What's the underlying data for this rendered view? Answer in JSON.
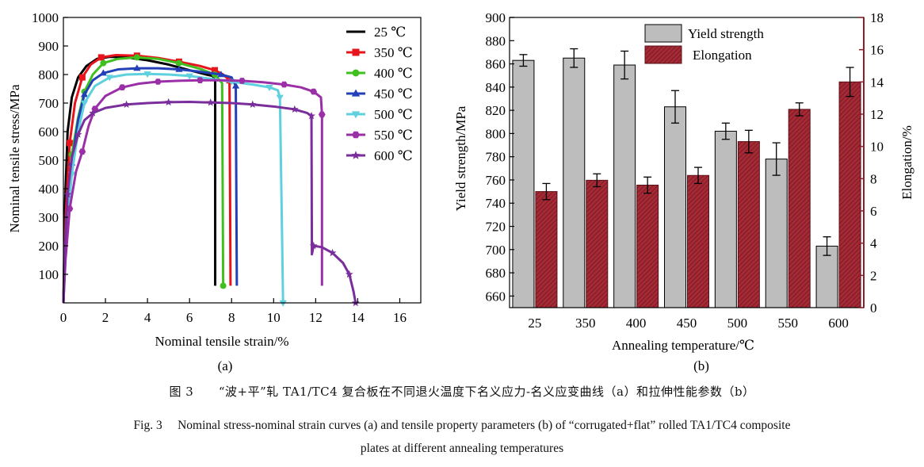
{
  "chart_data": [
    {
      "type": "line",
      "panel_label": "(a)",
      "xlabel": "Nominal tensile strain/%",
      "ylabel": "Nominal tensile stress/MPa",
      "xlim": [
        0,
        17
      ],
      "ylim": [
        0,
        1000
      ],
      "xticks": [
        "0",
        "2",
        "4",
        "6",
        "8",
        "10",
        "12",
        "14",
        "16"
      ],
      "yticks": [
        "100",
        "200",
        "300",
        "400",
        "500",
        "600",
        "700",
        "800",
        "900",
        "1000"
      ],
      "legend_position": "top-right",
      "series": [
        {
          "name": "25 ℃",
          "color": "#000000",
          "marker": "none",
          "points": [
            [
              0,
              0
            ],
            [
              0.08,
              350
            ],
            [
              0.2,
              600
            ],
            [
              0.4,
              720
            ],
            [
              0.7,
              790
            ],
            [
              1.1,
              830
            ],
            [
              1.6,
              855
            ],
            [
              2.2,
              862
            ],
            [
              3.0,
              860
            ],
            [
              4.0,
              850
            ],
            [
              5.0,
              835
            ],
            [
              6.0,
              815
            ],
            [
              6.8,
              800
            ],
            [
              7.1,
              795
            ],
            [
              7.22,
              780
            ],
            [
              7.22,
              60
            ]
          ]
        },
        {
          "name": "350 ℃",
          "color": "#e8141b",
          "marker": "square",
          "points": [
            [
              0,
              0
            ],
            [
              0.12,
              320
            ],
            [
              0.3,
              560
            ],
            [
              0.55,
              700
            ],
            [
              0.9,
              790
            ],
            [
              1.3,
              835
            ],
            [
              1.8,
              860
            ],
            [
              2.5,
              868
            ],
            [
              3.5,
              866
            ],
            [
              4.5,
              858
            ],
            [
              5.5,
              845
            ],
            [
              6.5,
              830
            ],
            [
              7.2,
              815
            ],
            [
              7.6,
              800
            ],
            [
              7.9,
              780
            ],
            [
              7.95,
              60
            ]
          ]
        },
        {
          "name": "400 ℃",
          "color": "#3fc01f",
          "marker": "circle",
          "points": [
            [
              0,
              0
            ],
            [
              0.15,
              300
            ],
            [
              0.4,
              520
            ],
            [
              0.7,
              650
            ],
            [
              1.0,
              740
            ],
            [
              1.4,
              800
            ],
            [
              1.9,
              840
            ],
            [
              2.6,
              855
            ],
            [
              3.5,
              860
            ],
            [
              4.5,
              855
            ],
            [
              5.5,
              840
            ],
            [
              6.5,
              820
            ],
            [
              7.2,
              800
            ],
            [
              7.55,
              770
            ],
            [
              7.6,
              60
            ]
          ]
        },
        {
          "name": "450 ℃",
          "color": "#2340b8",
          "marker": "triangle",
          "points": [
            [
              0,
              0
            ],
            [
              0.15,
              280
            ],
            [
              0.4,
              490
            ],
            [
              0.7,
              640
            ],
            [
              1.0,
              730
            ],
            [
              1.4,
              780
            ],
            [
              1.9,
              805
            ],
            [
              2.6,
              818
            ],
            [
              3.5,
              822
            ],
            [
              4.5,
              822
            ],
            [
              5.5,
              818
            ],
            [
              6.5,
              810
            ],
            [
              7.5,
              800
            ],
            [
              8.0,
              790
            ],
            [
              8.2,
              760
            ],
            [
              8.25,
              60
            ]
          ]
        },
        {
          "name": "500 ℃",
          "color": "#5fd0de",
          "marker": "triangle-down",
          "points": [
            [
              0,
              0
            ],
            [
              0.15,
              250
            ],
            [
              0.4,
              450
            ],
            [
              0.7,
              600
            ],
            [
              1.0,
              700
            ],
            [
              1.5,
              760
            ],
            [
              2.2,
              790
            ],
            [
              3.0,
              800
            ],
            [
              4.0,
              802
            ],
            [
              5.0,
              800
            ],
            [
              6.0,
              795
            ],
            [
              7.0,
              785
            ],
            [
              8.0,
              775
            ],
            [
              9.0,
              765
            ],
            [
              9.8,
              755
            ],
            [
              10.2,
              745
            ],
            [
              10.3,
              720
            ],
            [
              10.4,
              240
            ],
            [
              10.45,
              0
            ]
          ]
        },
        {
          "name": "550 ℃",
          "color": "#9b2fa8",
          "marker": "hexagon",
          "points": [
            [
              0,
              0
            ],
            [
              0.1,
              150
            ],
            [
              0.3,
              330
            ],
            [
              0.6,
              460
            ],
            [
              0.9,
              530
            ],
            [
              1.2,
              620
            ],
            [
              1.5,
              680
            ],
            [
              2.0,
              725
            ],
            [
              2.8,
              755
            ],
            [
              3.6,
              768
            ],
            [
              4.5,
              775
            ],
            [
              5.5,
              778
            ],
            [
              6.5,
              780
            ],
            [
              7.5,
              780
            ],
            [
              8.5,
              778
            ],
            [
              9.5,
              773
            ],
            [
              10.5,
              765
            ],
            [
              11.3,
              755
            ],
            [
              11.9,
              740
            ],
            [
              12.25,
              720
            ],
            [
              12.3,
              660
            ],
            [
              12.3,
              60
            ]
          ]
        },
        {
          "name": "600 ℃",
          "color": "#7a2e9c",
          "marker": "star",
          "points": [
            [
              0,
              0
            ],
            [
              0.08,
              200
            ],
            [
              0.2,
              380
            ],
            [
              0.4,
              510
            ],
            [
              0.7,
              590
            ],
            [
              1.0,
              640
            ],
            [
              1.4,
              665
            ],
            [
              2.0,
              683
            ],
            [
              3.0,
              695
            ],
            [
              4.0,
              700
            ],
            [
              5.0,
              703
            ],
            [
              6.0,
              704
            ],
            [
              7.0,
              702
            ],
            [
              8.0,
              700
            ],
            [
              9.0,
              695
            ],
            [
              10.0,
              688
            ],
            [
              11.0,
              678
            ],
            [
              11.6,
              665
            ],
            [
              11.8,
              655
            ],
            [
              11.82,
              170
            ],
            [
              11.9,
              200
            ],
            [
              12.3,
              195
            ],
            [
              12.8,
              175
            ],
            [
              13.3,
              140
            ],
            [
              13.6,
              100
            ],
            [
              13.8,
              40
            ],
            [
              13.9,
              0
            ]
          ]
        }
      ]
    },
    {
      "type": "bar",
      "panel_label": "(b)",
      "xlabel": "Annealing temperature/℃",
      "ylabel_left": "Yield strength/MPa",
      "ylabel_right": "Elongation/%",
      "categories": [
        "25",
        "350",
        "400",
        "450",
        "500",
        "550",
        "600"
      ],
      "ylim_left": [
        650,
        900
      ],
      "ylim_right": [
        0,
        18
      ],
      "yticks_left": [
        "660",
        "680",
        "700",
        "720",
        "740",
        "760",
        "780",
        "800",
        "820",
        "840",
        "860",
        "880",
        "900"
      ],
      "yticks_right": [
        "0",
        "2",
        "4",
        "6",
        "8",
        "10",
        "12",
        "14",
        "16",
        "18"
      ],
      "legend_position": "top-center",
      "series": [
        {
          "name": "Yield strength",
          "axis": "left",
          "color": "#bdbdbd",
          "values": [
            863,
            865,
            859,
            823,
            802,
            778,
            703
          ],
          "errors": [
            5,
            8,
            12,
            14,
            7,
            14,
            8
          ]
        },
        {
          "name": "Elongation",
          "axis": "right",
          "color": "#9c2a34",
          "values": [
            7.2,
            7.9,
            7.6,
            8.2,
            10.3,
            12.3,
            14.0
          ],
          "errors": [
            0.5,
            0.4,
            0.5,
            0.5,
            0.7,
            0.4,
            0.9
          ]
        }
      ]
    }
  ],
  "caption": {
    "cn_fig": "图 3",
    "cn_text": "“波+平”轧 TA1/TC4 复合板在不同退火温度下名义应力-名义应变曲线（a）和拉伸性能参数（b）",
    "en_fig": "Fig. 3",
    "en_text1": "Nominal stress-nominal strain curves (a) and tensile property parameters (b) of “corrugated+flat” rolled TA1/TC4 composite",
    "en_text2": "plates at different annealing temperatures"
  }
}
